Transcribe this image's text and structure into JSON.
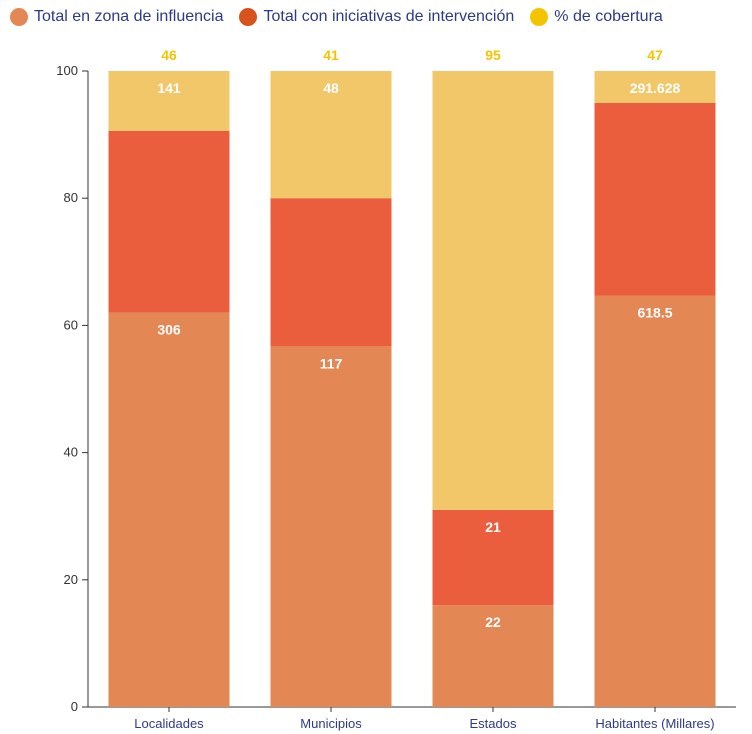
{
  "legend": [
    {
      "label": "Total en zona de influencia",
      "color": "#e38855"
    },
    {
      "label": "Total con iniciativas de intervención",
      "color": "#d8531c"
    },
    {
      "label": "% de cobertura",
      "color": "#f5c400"
    }
  ],
  "chart_data": {
    "type": "bar",
    "stacked": true,
    "categories": [
      "Localidades",
      "Municipios",
      "Estados",
      "Habitantes (Millares)"
    ],
    "series": [
      {
        "name": "Total en zona de influencia",
        "values": [
          62,
          56.7,
          16,
          64.7
        ],
        "color": "#e38855",
        "labels": [
          "306",
          "117",
          "22",
          "618.5"
        ]
      },
      {
        "name": "Total con iniciativas de intervención",
        "values": [
          28.6,
          23.3,
          15,
          30.3
        ],
        "color": "#ea5e3d",
        "labels": [
          "",
          "",
          "21",
          ""
        ]
      },
      {
        "name": "% de cobertura",
        "values": [
          9.4,
          20,
          69,
          5
        ],
        "color": "#f2c76a",
        "labels": [
          "141",
          "48",
          "",
          "291.628"
        ]
      }
    ],
    "top_labels": [
      "46",
      "41",
      "95",
      "47"
    ],
    "ylim": [
      0,
      100
    ],
    "yticks": [
      "0",
      "20",
      "40",
      "60",
      "80",
      "100"
    ],
    "xlabel": "",
    "ylabel": ""
  }
}
